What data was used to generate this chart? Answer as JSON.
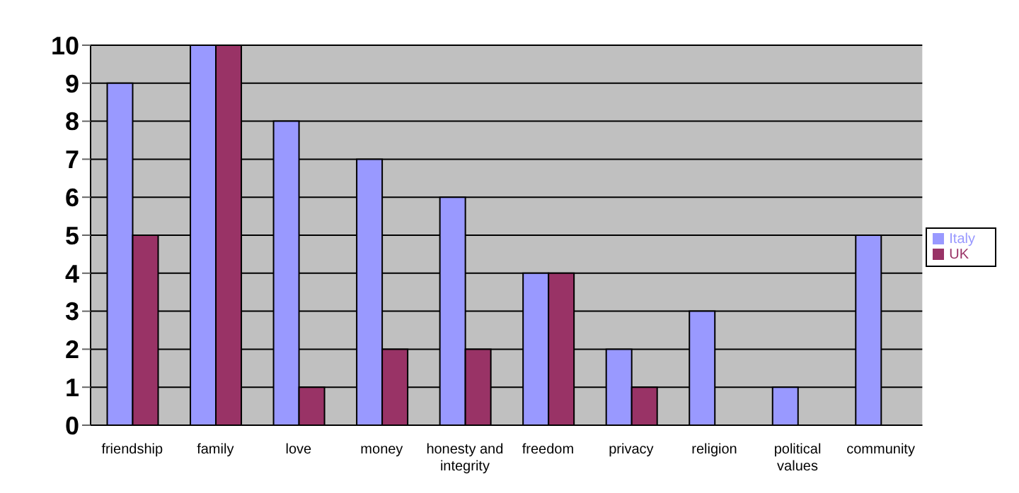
{
  "chart_data": {
    "type": "bar",
    "categories": [
      "friendship",
      "family",
      "love",
      "money",
      "honesty and integrity",
      "freedom",
      "privacy",
      "religion",
      "political values",
      "community"
    ],
    "series": [
      {
        "name": "Italy",
        "color": "#9999ff",
        "values": [
          9,
          10,
          8,
          7,
          6,
          4,
          2,
          3,
          1,
          5
        ]
      },
      {
        "name": "UK",
        "color": "#993366",
        "values": [
          5,
          10,
          1,
          2,
          2,
          4,
          1,
          0,
          0,
          0
        ]
      }
    ],
    "ylim": [
      0,
      10
    ],
    "yticks": [
      0,
      1,
      2,
      3,
      4,
      5,
      6,
      7,
      8,
      9,
      10
    ],
    "grid": "y",
    "legend": "right"
  }
}
